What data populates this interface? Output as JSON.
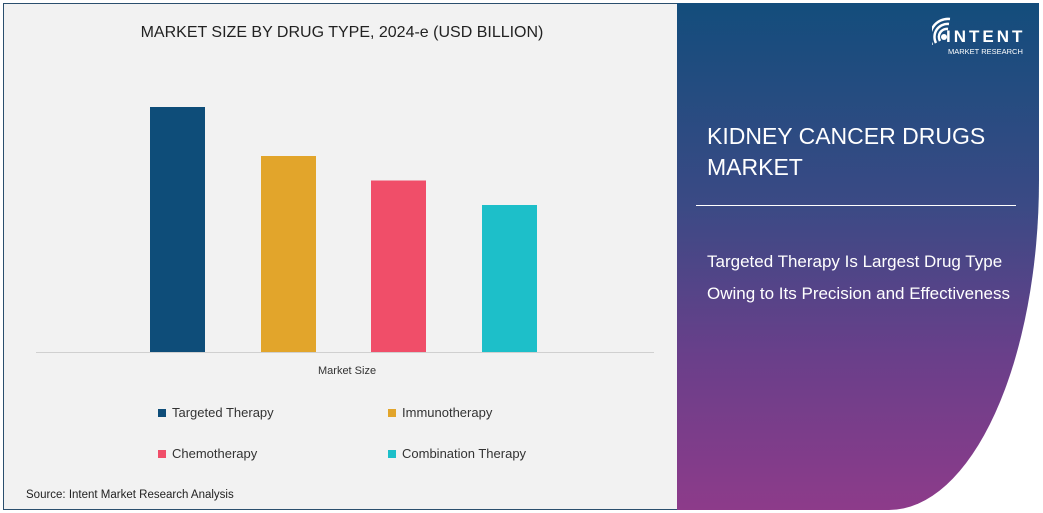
{
  "chart_data": {
    "type": "bar",
    "title": "MARKET SIZE BY DRUG TYPE, 2024-e (USD BILLION)",
    "categories": [
      "Market Size"
    ],
    "series": [
      {
        "name": "Targeted Therapy",
        "values": [
          1.0
        ],
        "color": "#0e4d79"
      },
      {
        "name": "Immunotherapy",
        "values": [
          0.8
        ],
        "color": "#e2a52b"
      },
      {
        "name": "Chemotherapy",
        "values": [
          0.7
        ],
        "color": "#f04e69"
      },
      {
        "name": "Combination Therapy",
        "values": [
          0.6
        ],
        "color": "#1dbfc9"
      }
    ],
    "xlabel": "",
    "ylabel": "",
    "grid": false,
    "legend_position": "bottom"
  },
  "source": "Source: Intent Market Research Analysis",
  "panel": {
    "title": "KIDNEY CANCER DRUGS MARKET",
    "subtitle": "Targeted Therapy Is Largest Drug Type Owing to Its Precision and Effectiveness",
    "logo": {
      "name": "INTENT",
      "tagline": "MARKET RESEARCH"
    }
  }
}
